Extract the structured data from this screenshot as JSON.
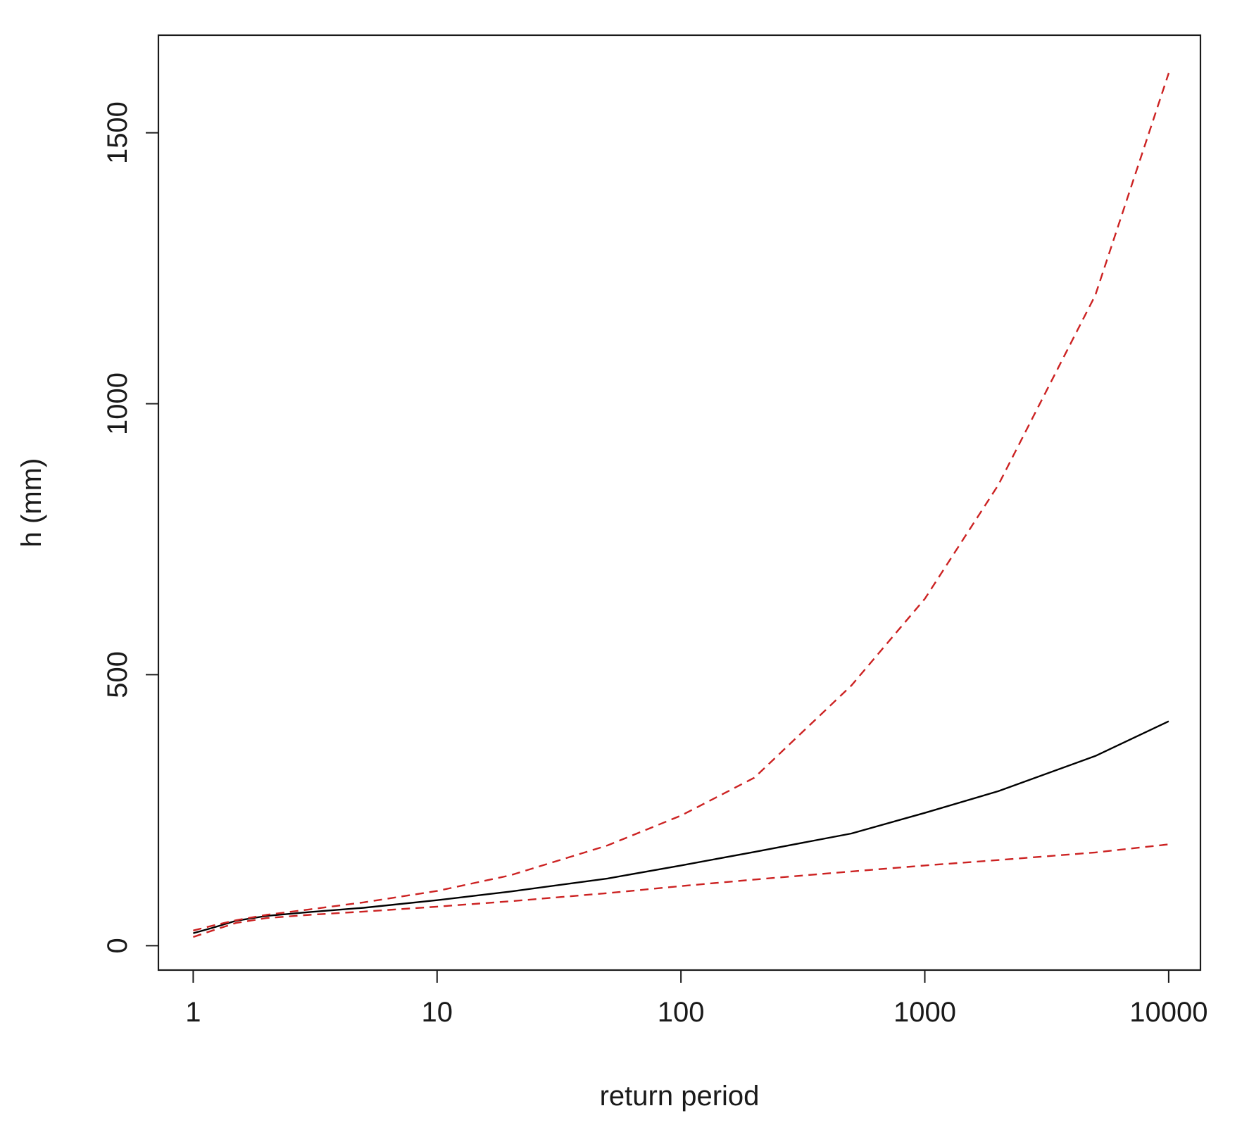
{
  "chart_data": {
    "type": "line",
    "title": "",
    "xlabel": "return period",
    "ylabel": "h (mm)",
    "x_scale": "log",
    "xlim": [
      0.72,
      13500
    ],
    "ylim": [
      -45,
      1680
    ],
    "x_ticks": [
      1,
      10,
      100,
      1000,
      10000
    ],
    "x_tick_labels": [
      "1",
      "10",
      "100",
      "1000",
      "10000"
    ],
    "y_ticks": [
      0,
      500,
      1000,
      1500
    ],
    "y_tick_labels": [
      "0",
      "500",
      "1000",
      "1500"
    ],
    "grid": false,
    "legend": "none",
    "series": [
      {
        "style": "solid",
        "color": "#000000",
        "x": [
          1,
          1.2,
          1.5,
          2,
          3,
          5,
          10,
          20,
          50,
          100,
          200,
          500,
          1000,
          2000,
          5000,
          10000
        ],
        "y": [
          23,
          33,
          46,
          55,
          62,
          70,
          84,
          100,
          124,
          148,
          173,
          207,
          245,
          285,
          350,
          414
        ]
      },
      {
        "style": "dashed",
        "color": "#cc2222",
        "x": [
          1,
          1.2,
          1.5,
          2,
          3,
          5,
          10,
          20,
          50,
          100,
          200,
          500,
          1000,
          2000,
          5000,
          10000
        ],
        "y": [
          28,
          37,
          47,
          57,
          67,
          80,
          101,
          130,
          185,
          240,
          310,
          480,
          640,
          850,
          1200,
          1610
        ]
      },
      {
        "style": "dashed",
        "color": "#cc2222",
        "x": [
          1,
          1.2,
          1.5,
          2,
          3,
          5,
          10,
          20,
          50,
          100,
          200,
          500,
          1000,
          2000,
          5000,
          10000
        ],
        "y": [
          16,
          28,
          42,
          51,
          57,
          63,
          72,
          82,
          97,
          110,
          122,
          137,
          148,
          158,
          172,
          187
        ]
      }
    ]
  }
}
